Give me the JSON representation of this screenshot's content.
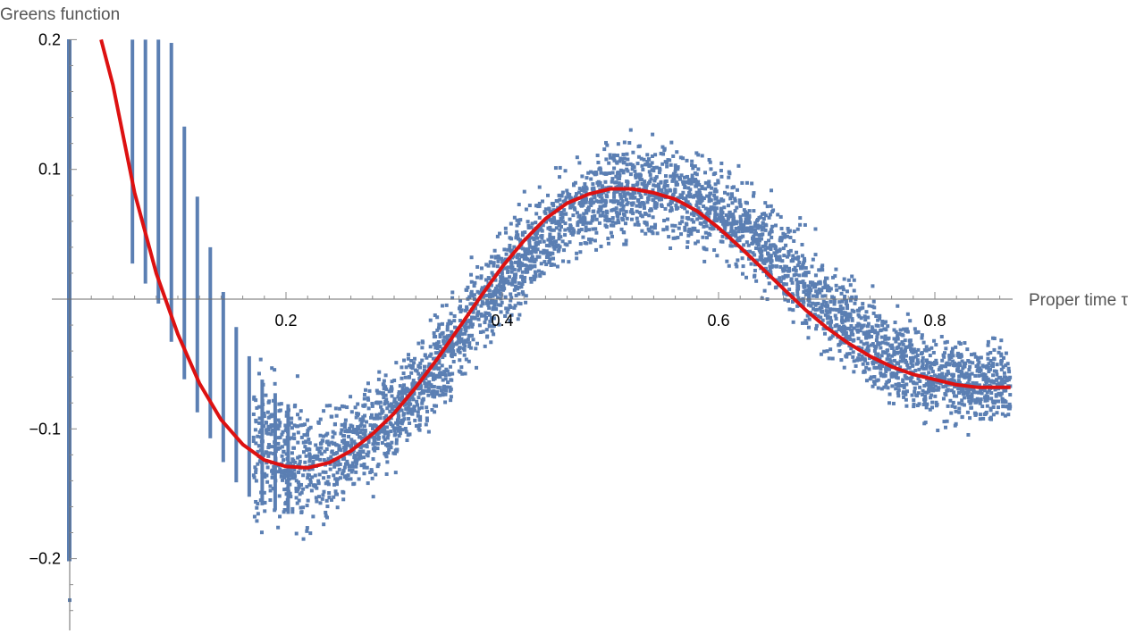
{
  "chart_data": {
    "type": "scatter",
    "title": "",
    "xlabel": "Proper time τ",
    "ylabel": "Greens function",
    "xlim": [
      0.0,
      0.87
    ],
    "ylim": [
      -0.255,
      0.2
    ],
    "x_ticks": [
      {
        "value": 0.2,
        "label": "0.2"
      },
      {
        "value": 0.4,
        "label": "0.4"
      },
      {
        "value": 0.6,
        "label": "0.6"
      },
      {
        "value": 0.8,
        "label": "0.8"
      }
    ],
    "y_ticks": [
      {
        "value": 0.2,
        "label": "0.2"
      },
      {
        "value": 0.1,
        "label": "0.1"
      },
      {
        "value": -0.1,
        "label": "−0.1"
      },
      {
        "value": -0.2,
        "label": "−0.2"
      }
    ],
    "grid": false,
    "legend": "none",
    "colors": {
      "samples": "#5b7fb3",
      "fit": "#dd1111"
    },
    "series": [
      {
        "kind": "scatter-band",
        "description_points": "sampled Monte Carlo estimates spread around the curve",
        "x": [
          0.0,
          0.056,
          0.084,
          0.1,
          0.12,
          0.14,
          0.16,
          0.18,
          0.2,
          0.22,
          0.25,
          0.3,
          0.35,
          0.4,
          0.45,
          0.5,
          0.55,
          0.6,
          0.65,
          0.7,
          0.75,
          0.8,
          0.87
        ],
        "y_center": [
          0.2,
          0.21,
          0.12,
          0.05,
          -0.015,
          -0.06,
          -0.095,
          -0.115,
          -0.125,
          -0.13,
          -0.122,
          -0.092,
          -0.04,
          0.015,
          0.06,
          0.081,
          0.085,
          0.07,
          0.036,
          -0.005,
          -0.04,
          -0.06,
          -0.068
        ],
        "y_spread": [
          0.25,
          0.2,
          0.14,
          0.11,
          0.085,
          0.07,
          0.06,
          0.05,
          0.045,
          0.04,
          0.035,
          0.03,
          0.03,
          0.03,
          0.03,
          0.03,
          0.032,
          0.03,
          0.03,
          0.03,
          0.03,
          0.03,
          0.028
        ]
      },
      {
        "kind": "line",
        "x": [
          0.029,
          0.04,
          0.06,
          0.08,
          0.1,
          0.12,
          0.14,
          0.16,
          0.18,
          0.2,
          0.22,
          0.24,
          0.26,
          0.28,
          0.3,
          0.32,
          0.34,
          0.36,
          0.38,
          0.4,
          0.42,
          0.44,
          0.46,
          0.48,
          0.5,
          0.52,
          0.54,
          0.56,
          0.58,
          0.6,
          0.62,
          0.64,
          0.66,
          0.68,
          0.7,
          0.72,
          0.74,
          0.76,
          0.78,
          0.8,
          0.82,
          0.84,
          0.86,
          0.87
        ],
        "y": [
          0.2,
          0.165,
          0.082,
          0.02,
          -0.027,
          -0.065,
          -0.093,
          -0.112,
          -0.124,
          -0.129,
          -0.13,
          -0.126,
          -0.117,
          -0.104,
          -0.088,
          -0.068,
          -0.046,
          -0.022,
          0.002,
          0.025,
          0.045,
          0.062,
          0.074,
          0.081,
          0.085,
          0.085,
          0.082,
          0.077,
          0.068,
          0.055,
          0.04,
          0.024,
          0.008,
          -0.008,
          -0.022,
          -0.034,
          -0.044,
          -0.052,
          -0.058,
          -0.062,
          -0.066,
          -0.068,
          -0.068,
          -0.068
        ]
      }
    ]
  }
}
